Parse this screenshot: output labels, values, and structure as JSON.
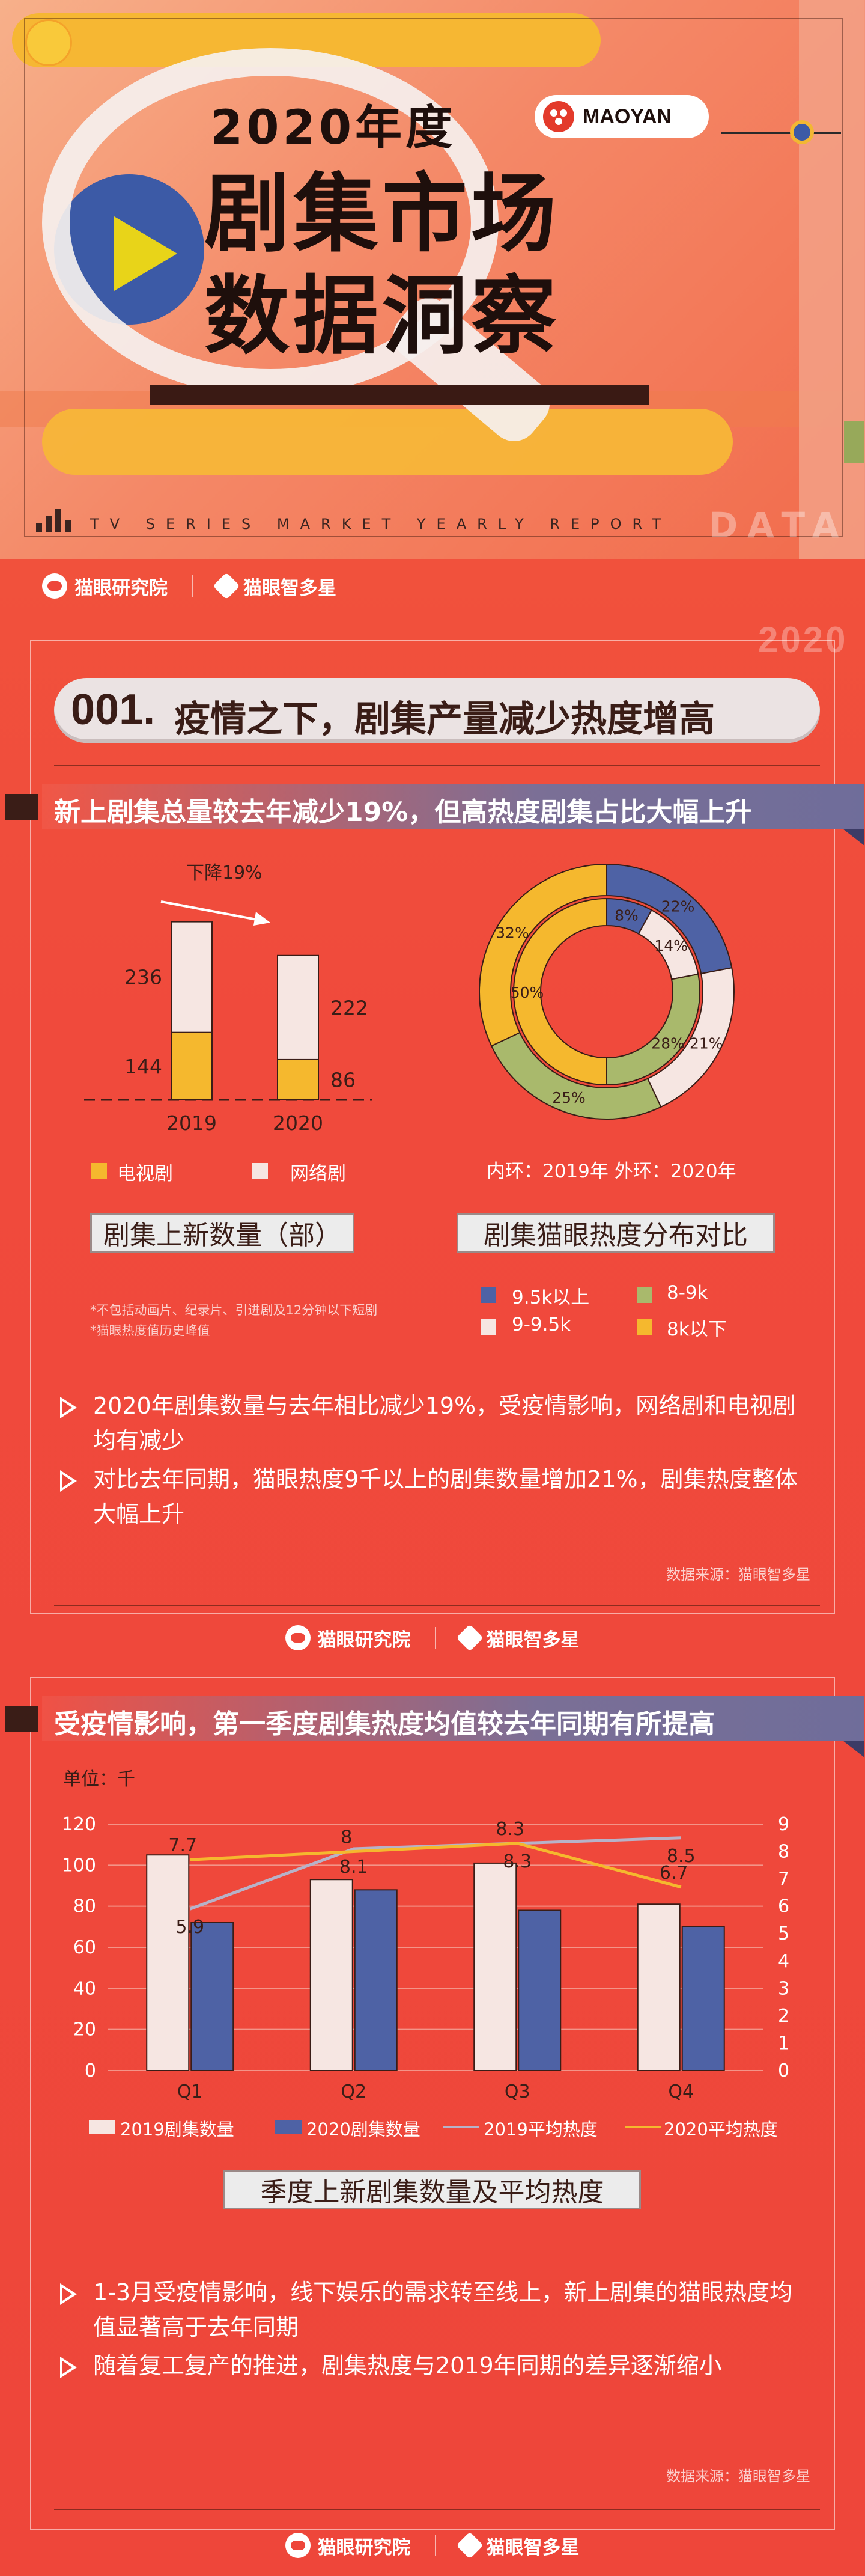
{
  "header": {
    "year_title": "2020年度",
    "title_line1": "剧集市场",
    "title_line2": "数据洞察",
    "brand_badge": "MAOYAN",
    "subtitle_en": "TV SERIES MARKET YEARLY REPORT",
    "data_word": "DATA"
  },
  "brands": {
    "research": "猫眼研究院",
    "platform": "猫眼智多星"
  },
  "section1": {
    "watermark_year": "2020",
    "number": "001.",
    "title": "疫情之下，剧集产量减少热度增高",
    "banner": "新上剧集总量较去年减少19%，但高热度剧集占比大幅上升",
    "bar_caption": "剧集上新数量（部）",
    "donut_caption": "剧集猫眼热度分布对比",
    "ring_note": "内环：2019年   外环：2020年",
    "bar_legend": [
      "电视剧",
      "网络剧"
    ],
    "donut_legend": [
      "9.5k以上",
      "8-9k",
      "9-9.5k",
      "8k以下"
    ],
    "notes": [
      "*不包括动画片、纪录片、引进剧及12分钟以下短剧",
      "*猫眼热度值历史峰值"
    ],
    "bullets": [
      "2020年剧集数量与去年相比减少19%，受疫情影响，网络剧和电视剧均有减少",
      "对比去年同期，猫眼热度9千以上的剧集数量增加21%，剧集热度整体大幅上升"
    ],
    "source": "数据来源：猫眼智多星"
  },
  "section2": {
    "banner": "受疫情影响，第一季度剧集热度均值较去年同期有所提高",
    "unit": "单位：千",
    "caption": "季度上新剧集数量及平均热度",
    "legend": [
      "2019剧集数量",
      "2020剧集数量",
      "2019平均热度",
      "2020平均热度"
    ],
    "bullets": [
      "1-3月受疫情影响，线下娱乐的需求转至线上，新上剧集的猫眼热度均值显著高于去年同期",
      "随着复工复产的推进，剧集热度与2019年同期的差异逐渐缩小"
    ],
    "source": "数据来源：猫眼智多星"
  },
  "colors": {
    "tv": "#f5b82e",
    "web": "#f6e6e2",
    "blue": "#4e62a5",
    "green": "#a9b96c",
    "white": "#f6e6e2",
    "yellow": "#f5b82e",
    "line2019": "#b7b2c8",
    "line2020": "#f5b82e"
  },
  "chart_data": [
    {
      "type": "bar",
      "title": "剧集上新数量（部）",
      "categories": [
        "2019",
        "2020"
      ],
      "series": [
        {
          "name": "电视剧",
          "values": [
            144,
            86
          ]
        },
        {
          "name": "网络剧",
          "values": [
            236,
            222
          ]
        }
      ],
      "stacked": true,
      "annotation": "下降19%"
    },
    {
      "type": "pie",
      "title": "剧集猫眼热度分布对比",
      "donut": true,
      "categories": [
        "9.5k以上",
        "9-9.5k",
        "8-9k",
        "8k以下"
      ],
      "rings": [
        {
          "name": "内环：2019年",
          "values": [
            8,
            14,
            28,
            50
          ],
          "labels": [
            "8%",
            "14%",
            "28%",
            "50%"
          ]
        },
        {
          "name": "外环：2020年",
          "values": [
            22,
            21,
            25,
            32
          ],
          "labels": [
            "22%",
            "21%",
            "25%",
            "32%"
          ]
        }
      ]
    },
    {
      "type": "bar",
      "title": "季度上新剧集数量及平均热度",
      "categories": [
        "Q1",
        "Q2",
        "Q3",
        "Q4"
      ],
      "series": [
        {
          "name": "2019剧集数量",
          "values": [
            105,
            93,
            101,
            81
          ]
        },
        {
          "name": "2020剧集数量",
          "values": [
            72,
            88,
            78,
            70
          ]
        },
        {
          "name": "2019平均热度",
          "type": "line",
          "axis": "right",
          "values": [
            5.9,
            8.1,
            8.3,
            8.5
          ]
        },
        {
          "name": "2020平均热度",
          "type": "line",
          "axis": "right",
          "values": [
            7.7,
            8,
            8.3,
            6.7
          ]
        }
      ],
      "ylim_left": [
        0,
        120
      ],
      "yticks_left": [
        0,
        20,
        40,
        60,
        80,
        100,
        120
      ],
      "ylim_right": [
        0,
        9
      ],
      "yticks_right": [
        0,
        1,
        2,
        3,
        4,
        5,
        6,
        7,
        8,
        9
      ],
      "unit": "单位：千",
      "legend": "bottom"
    }
  ]
}
